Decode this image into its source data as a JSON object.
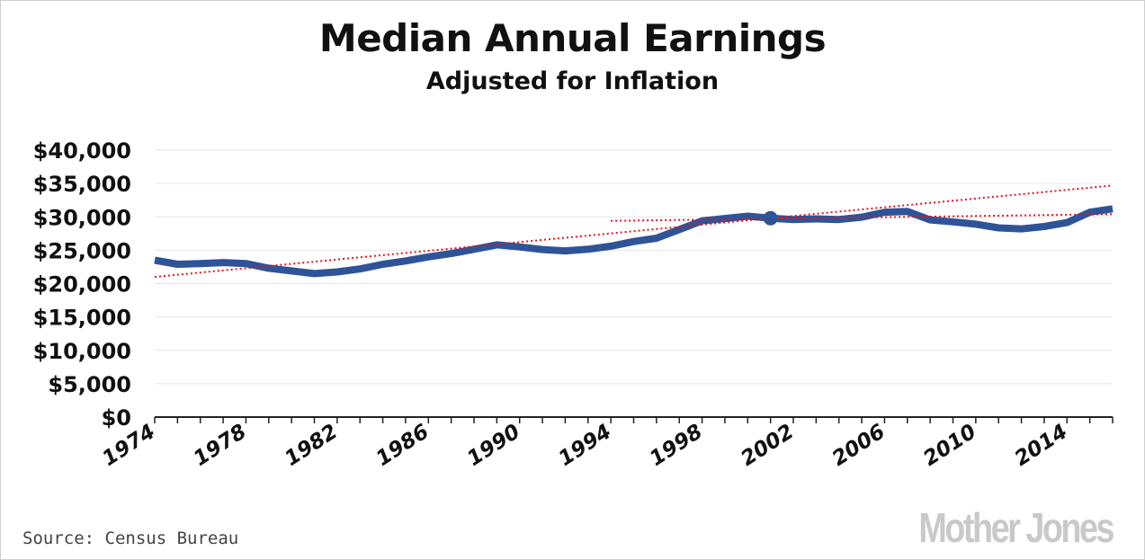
{
  "chart_data": {
    "type": "line",
    "title": "Median Annual Earnings",
    "subtitle": "Adjusted for Inflation",
    "source": "Source: Census Bureau",
    "logo": "Mother Jones",
    "ylim": [
      0,
      40000
    ],
    "yticks": [
      "$0",
      "$5,000",
      "$10,000",
      "$15,000",
      "$20,000",
      "$25,000",
      "$30,000",
      "$35,000",
      "$40,000"
    ],
    "ytick_values": [
      0,
      5000,
      10000,
      15000,
      20000,
      25000,
      30000,
      35000,
      40000
    ],
    "xlim": [
      1974,
      2016
    ],
    "xticks": [
      "1974",
      "1978",
      "1982",
      "1986",
      "1990",
      "1994",
      "1998",
      "2002",
      "2006",
      "2010",
      "2014"
    ],
    "grid": true,
    "series": [
      {
        "color": "#2e5497",
        "x": [
          1974,
          1975,
          1976,
          1977,
          1978,
          1979,
          1980,
          1981,
          1982,
          1983,
          1984,
          1985,
          1986,
          1987,
          1988,
          1989,
          1990,
          1991,
          1992,
          1993,
          1994,
          1995,
          1996,
          1997,
          1998,
          1999,
          2000,
          2001,
          2002,
          2003,
          2004,
          2005,
          2006,
          2007,
          2008,
          2009,
          2010,
          2011,
          2012,
          2013,
          2014,
          2015,
          2016
        ],
        "y": [
          23500,
          22900,
          23000,
          23150,
          23000,
          22300,
          21900,
          21500,
          21750,
          22200,
          22900,
          23400,
          24000,
          24500,
          25150,
          25800,
          25500,
          25100,
          24900,
          25150,
          25600,
          26300,
          26800,
          28100,
          29400,
          29750,
          30100,
          29800,
          29600,
          29700,
          29600,
          29950,
          30700,
          30800,
          29550,
          29250,
          28900,
          28350,
          28200,
          28550,
          29150,
          30700,
          31200
        ]
      }
    ],
    "highlight_point": {
      "x": 2001,
      "y": 29800
    },
    "trendlines": [
      {
        "color": "#e0141e",
        "style": "dotted",
        "x": [
          1974,
          2016
        ],
        "y": [
          21000,
          34700
        ]
      },
      {
        "color": "#e0141e",
        "style": "dotted",
        "x": [
          1994,
          2016
        ],
        "y": [
          29400,
          30400
        ]
      }
    ]
  }
}
